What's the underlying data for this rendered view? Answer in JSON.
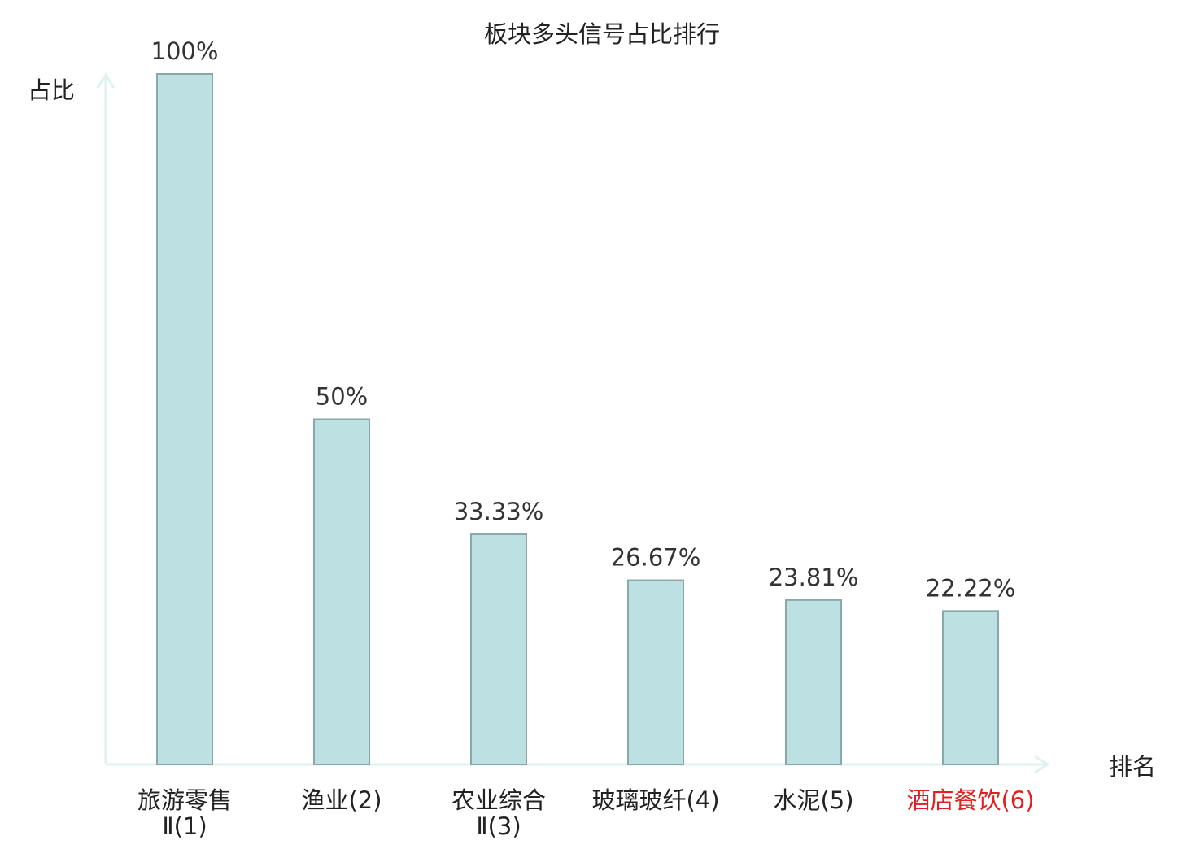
{
  "chart_data": {
    "type": "bar",
    "title": "板块多头信号占比排行",
    "ylabel": "占比",
    "xlabel": "排名",
    "ylim": [
      0,
      100
    ],
    "grid": false,
    "legend": "none",
    "categories": [
      [
        "旅游零售",
        "Ⅱ(1)"
      ],
      [
        "渔业(2)"
      ],
      [
        "农业综合",
        "Ⅱ(3)"
      ],
      [
        "玻璃玻纤(4)"
      ],
      [
        "水泥(5)"
      ],
      [
        "酒店餐饮(6)"
      ]
    ],
    "values": [
      100,
      50,
      33.33,
      26.67,
      23.81,
      22.22
    ],
    "value_labels": [
      "100%",
      "50%",
      "33.33%",
      "26.67%",
      "23.81%",
      "22.22%"
    ],
    "highlight_index": 5
  },
  "colors": {
    "bar_fill": "#bde0e3",
    "bar_stroke": "#8aa8aa",
    "axis": "#dff2ef",
    "text": "#333333",
    "highlight": "#e02020",
    "category_text": "#222222",
    "category_suffix": "#555555"
  }
}
